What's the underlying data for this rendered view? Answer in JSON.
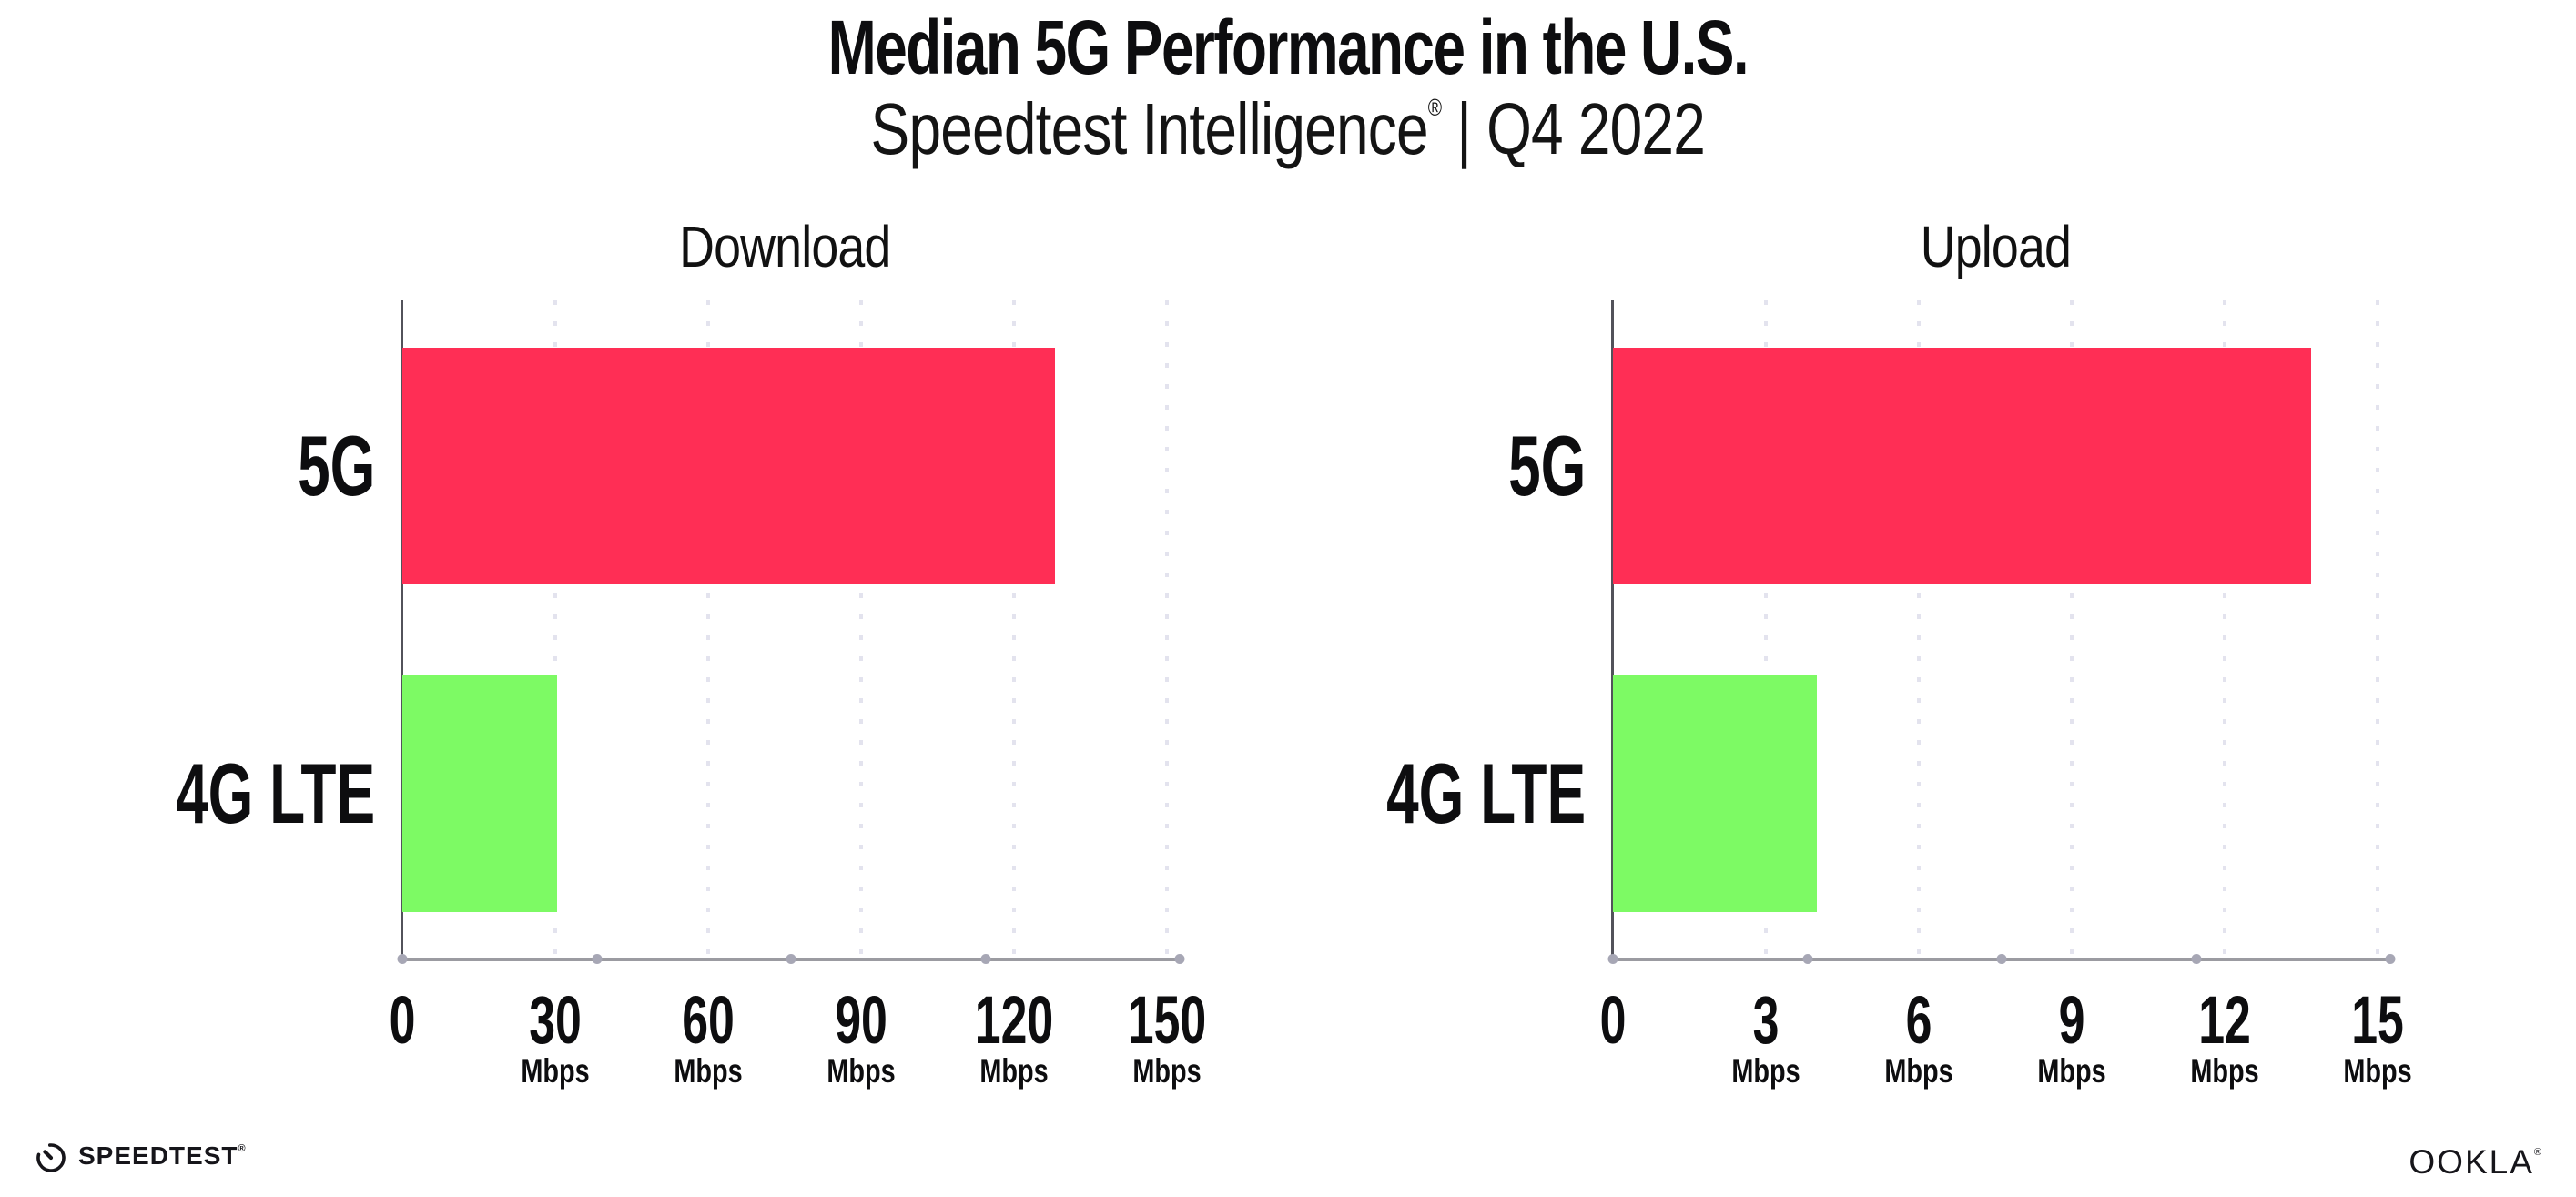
{
  "header": {
    "title": "Median 5G Performance in the U.S.",
    "subtitle_brand": "Speedtest Intelligence",
    "subtitle_reg": "®",
    "subtitle_rest": " | Q4 2022"
  },
  "colors": {
    "bar_5g": "#ff2e55",
    "bar_4g_lte": "#7dfa64",
    "gridline": "#e3e3ee",
    "axis_line": "#9b9ba1",
    "axis_dot": "#a7a7b5",
    "y_axis_line": "#52525a",
    "text": "#0d0d0f",
    "background": "#ffffff"
  },
  "chart_data": [
    {
      "type": "bar",
      "orientation": "horizontal",
      "title": "Download",
      "categories": [
        "5G",
        "4G LTE"
      ],
      "values": [
        128,
        30.3
      ],
      "unit": "Mbps",
      "xlim": [
        0,
        150
      ],
      "ticks": [
        0,
        30,
        60,
        90,
        120,
        150
      ],
      "bar_colors": [
        "#ff2e55",
        "#7dfa64"
      ],
      "grid": "dotted-vertical",
      "legend": "none"
    },
    {
      "type": "bar",
      "orientation": "horizontal",
      "title": "Upload",
      "categories": [
        "5G",
        "4G LTE"
      ],
      "values": [
        13.7,
        4.0
      ],
      "unit": "Mbps",
      "xlim": [
        0,
        15
      ],
      "ticks": [
        0,
        3,
        6,
        9,
        12,
        15
      ],
      "bar_colors": [
        "#ff2e55",
        "#7dfa64"
      ],
      "grid": "dotted-vertical",
      "legend": "none"
    }
  ],
  "footer": {
    "speedtest_label": "SPEEDTEST",
    "speedtest_reg": "®",
    "ookla_label": "OOKLA",
    "ookla_reg": "®"
  }
}
